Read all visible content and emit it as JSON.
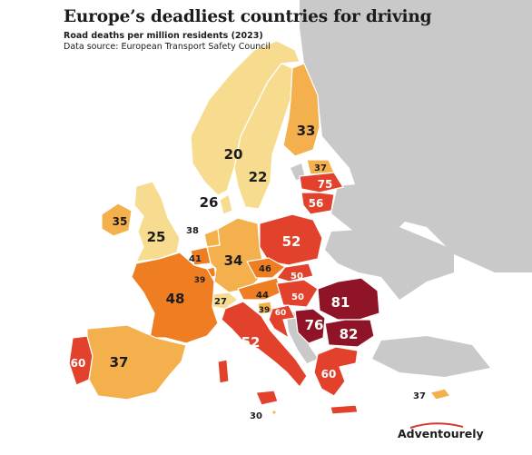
{
  "title": "Europe’s deadliest countries for driving",
  "subtitle": "Road deaths per million residents (2023)",
  "source": "Data source: European Transport Safety Council",
  "brand": "Adventourely",
  "colors": {
    "sea": "#ffffff",
    "non_data": "#c9c9c9",
    "border": "#ffffff",
    "scale_lowest": "#f7dc8f",
    "scale_low": "#f4b04c",
    "scale_mid": "#ef7d21",
    "scale_high": "#e2422b",
    "scale_highest": "#8f1427"
  },
  "values": {
    "finland": "33",
    "sweden": "20",
    "norway": "22",
    "denmark": "26",
    "estonia": "37",
    "latvia": "75",
    "lithuania": "56",
    "ireland": "35",
    "united_kingdom": "25",
    "netherlands": "38",
    "belgium": "41",
    "luxembourg": "39",
    "germany": "34",
    "poland": "52",
    "czechia": "46",
    "slovakia": "50",
    "austria": "44",
    "hungary": "50",
    "switzerland": "27",
    "slovenia": "39",
    "croatia": "60",
    "france": "48",
    "romania": "81",
    "serbia": "76",
    "bulgaria": "82",
    "italy": "52",
    "greece": "60",
    "portugal": "60",
    "spain": "37",
    "cyprus": "37",
    "malta": "30"
  }
}
